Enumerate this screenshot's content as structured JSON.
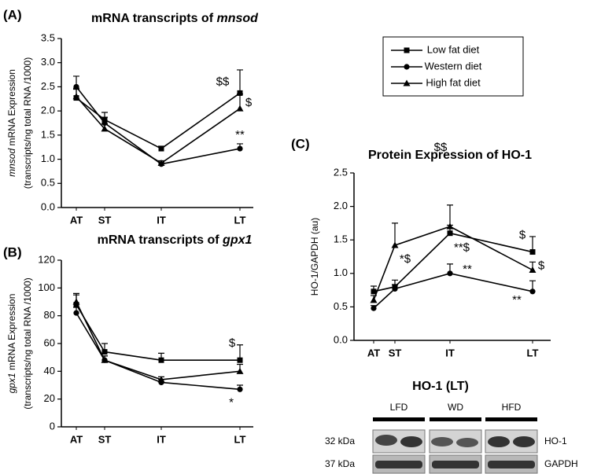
{
  "chart_data": [
    {
      "type": "line",
      "panel": "(A)",
      "title": "mRNA transcripts of",
      "title_italic": "mnsod",
      "ylabel_italic": "mnsod",
      "ylabel": [
        "mRNA Expression",
        "(transcripts/ng total RNA /1000)"
      ],
      "categories": [
        "AT",
        "ST",
        "IT",
        "LT"
      ],
      "ylim": [
        0,
        3.5
      ],
      "yticks": [
        {
          "value": 0,
          "label": "0.0"
        },
        0.5,
        {
          "value": 1,
          "label": "1.0"
        },
        1.5,
        {
          "value": 2,
          "label": "2.0"
        },
        2.5,
        {
          "value": 3,
          "label": "3.0"
        },
        3.5
      ],
      "series": [
        {
          "name": "Low fat diet",
          "marker": "square",
          "color": "#000000",
          "values": [
            2.27,
            1.82,
            1.22,
            2.37
          ],
          "errors": [
            0.2,
            0.15,
            0.05,
            0.48
          ],
          "annotations": [
            null,
            null,
            null,
            "$$"
          ]
        },
        {
          "name": "Western diet",
          "marker": "circle",
          "color": "#000000",
          "values": [
            2.5,
            1.75,
            0.9,
            1.22
          ],
          "errors": [
            0.22,
            0.12,
            0.04,
            0.1
          ],
          "annotations": [
            null,
            null,
            null,
            "**"
          ]
        },
        {
          "name": "High fat diet",
          "marker": "triangle",
          "color": "#000000",
          "values": [
            2.3,
            1.63,
            0.92,
            2.05
          ],
          "errors": [
            0.15,
            0.1,
            0.05,
            0.3
          ],
          "annotations": [
            null,
            null,
            null,
            "$"
          ]
        }
      ]
    },
    {
      "type": "line",
      "panel": "(B)",
      "title": "mRNA transcripts of",
      "title_italic": "gpx1",
      "ylabel_italic": "gpx1",
      "ylabel": [
        "mRNA Expression",
        "(transcripts/ng total RNA /1000)"
      ],
      "categories": [
        "AT",
        "ST",
        "IT",
        "LT"
      ],
      "ylim": [
        0,
        120
      ],
      "yticks": [
        0,
        20,
        40,
        60,
        80,
        100,
        120
      ],
      "series": [
        {
          "name": "Low fat diet",
          "marker": "square",
          "color": "#000000",
          "values": [
            88,
            54,
            48,
            48
          ],
          "errors": [
            7,
            6,
            5,
            11
          ],
          "annotations": [
            null,
            null,
            null,
            "$"
          ]
        },
        {
          "name": "Western diet",
          "marker": "circle",
          "color": "#000000",
          "values": [
            82,
            48,
            32,
            27
          ],
          "errors": [
            4,
            3,
            2,
            3
          ],
          "annotations": [
            null,
            null,
            null,
            "*"
          ]
        },
        {
          "name": "High fat diet",
          "marker": "triangle",
          "color": "#000000",
          "values": [
            90,
            48,
            34,
            40
          ],
          "errors": [
            6,
            3,
            2,
            5
          ],
          "annotations": [
            null,
            null,
            null,
            null
          ]
        }
      ]
    },
    {
      "type": "line",
      "panel": "(C)",
      "title": "Protein Expression of HO-1",
      "ylabel": [
        "HO-1/GAPDH (au)"
      ],
      "categories": [
        "AT",
        "ST",
        "IT",
        "LT"
      ],
      "ylim": [
        0,
        2.5
      ],
      "yticks": [
        {
          "value": 0,
          "label": "0.0"
        },
        0.5,
        {
          "value": 1,
          "label": "1.0"
        },
        1.5,
        {
          "value": 2,
          "label": "2.0"
        },
        2.5
      ],
      "series": [
        {
          "name": "Low fat diet",
          "marker": "square",
          "color": "#000000",
          "values": [
            0.73,
            0.8,
            1.6,
            1.32
          ],
          "errors": [
            0.08,
            0.1,
            0.12,
            0.23
          ],
          "annotations": [
            null,
            null,
            "**$",
            "$"
          ]
        },
        {
          "name": "Western diet",
          "marker": "circle",
          "color": "#000000",
          "values": [
            0.48,
            0.77,
            1.0,
            0.73
          ],
          "errors": [
            0.04,
            0.06,
            0.14,
            0.16
          ],
          "annotations": [
            null,
            null,
            "**",
            "**"
          ]
        },
        {
          "name": "High fat diet",
          "marker": "triangle",
          "color": "#000000",
          "values": [
            0.6,
            1.42,
            1.7,
            1.05
          ],
          "errors": [
            0.07,
            0.33,
            0.32,
            0.12
          ],
          "annotations": [
            null,
            "*$",
            "$$",
            "$"
          ]
        }
      ]
    }
  ],
  "blot": {
    "title": "HO-1 (LT)",
    "groups": [
      "LFD",
      "WD",
      "HFD"
    ],
    "weights": [
      "32 kDa",
      "37 kDa"
    ],
    "proteins": [
      "HO-1",
      "GAPDH"
    ]
  }
}
